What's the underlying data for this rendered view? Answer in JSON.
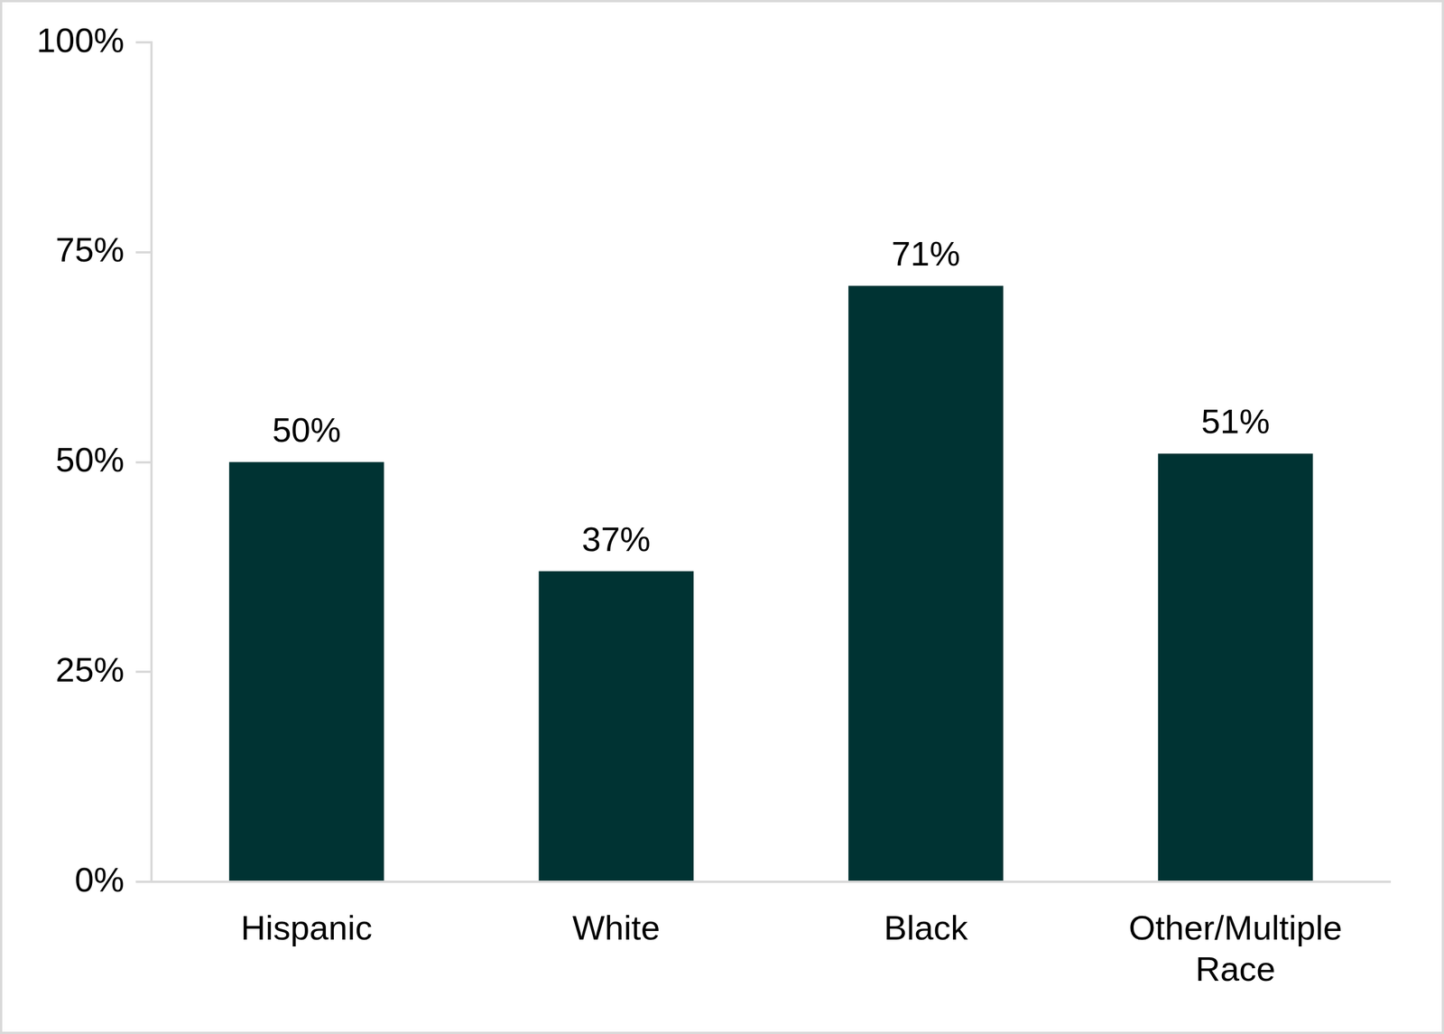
{
  "chart_data": {
    "type": "bar",
    "categories": [
      "Hispanic",
      "White",
      "Black",
      "Other/Multiple Race"
    ],
    "values": [
      50,
      37,
      71,
      51
    ],
    "value_labels": [
      "50%",
      "37%",
      "71%",
      "51%"
    ],
    "color": "#003333",
    "ylim": [
      0,
      100
    ],
    "yticks": [
      {
        "value": 0,
        "label": "0%"
      },
      {
        "value": 25,
        "label": "25%"
      },
      {
        "value": 50,
        "label": "50%"
      },
      {
        "value": 75,
        "label": "75%"
      },
      {
        "value": 100,
        "label": "100%"
      }
    ],
    "grid": false,
    "data_labels": true
  }
}
